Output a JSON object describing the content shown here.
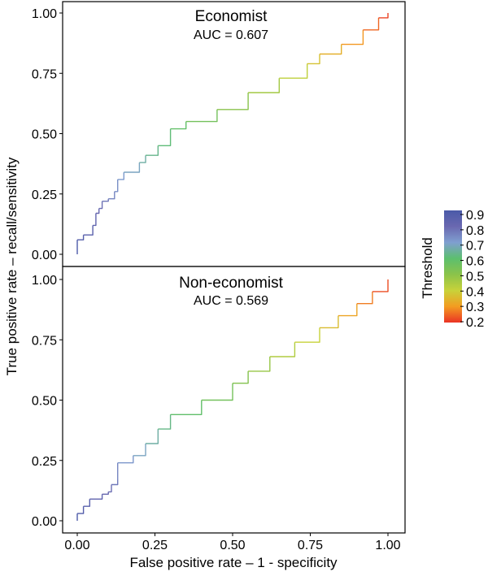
{
  "chart_data": {
    "type": "line",
    "xlabel": "False positive rate – 1 - specificity",
    "ylabel": "True positive rate – recall/sensitivity",
    "xlim": [
      0,
      1
    ],
    "ylim": [
      0,
      1
    ],
    "x_ticks": [
      "0.00",
      "0.25",
      "0.50",
      "0.75",
      "1.00"
    ],
    "y_ticks": [
      "0.00",
      "0.25",
      "0.50",
      "0.75",
      "1.00"
    ],
    "grid": false,
    "legend": {
      "title": "Threshold",
      "placement": "right",
      "range": [
        0.2,
        0.9
      ],
      "ticks": [
        "0.9",
        "0.8",
        "0.7",
        "0.6",
        "0.5",
        "0.4",
        "0.3",
        "0.2"
      ],
      "colors": [
        "#4a5aa8",
        "#6a68b0",
        "#7f9fd0",
        "#5cbf6e",
        "#8bc34a",
        "#c8d23a",
        "#f39c21",
        "#ea3324"
      ]
    },
    "panels": [
      {
        "title": "Economist",
        "subtitle": "AUC = 0.607",
        "points": [
          [
            0.0,
            0.0,
            0.9
          ],
          [
            0.0,
            0.06,
            0.88
          ],
          [
            0.02,
            0.08,
            0.86
          ],
          [
            0.05,
            0.12,
            0.84
          ],
          [
            0.06,
            0.17,
            0.82
          ],
          [
            0.07,
            0.19,
            0.8
          ],
          [
            0.08,
            0.22,
            0.78
          ],
          [
            0.1,
            0.23,
            0.76
          ],
          [
            0.12,
            0.26,
            0.74
          ],
          [
            0.13,
            0.31,
            0.72
          ],
          [
            0.15,
            0.34,
            0.7
          ],
          [
            0.2,
            0.38,
            0.67
          ],
          [
            0.22,
            0.41,
            0.64
          ],
          [
            0.26,
            0.45,
            0.62
          ],
          [
            0.3,
            0.52,
            0.6
          ],
          [
            0.35,
            0.55,
            0.57
          ],
          [
            0.45,
            0.6,
            0.53
          ],
          [
            0.55,
            0.67,
            0.48
          ],
          [
            0.65,
            0.73,
            0.44
          ],
          [
            0.74,
            0.79,
            0.39
          ],
          [
            0.78,
            0.83,
            0.35
          ],
          [
            0.85,
            0.87,
            0.32
          ],
          [
            0.92,
            0.93,
            0.27
          ],
          [
            0.97,
            0.98,
            0.23
          ],
          [
            1.0,
            1.0,
            0.2
          ]
        ]
      },
      {
        "title": "Non-economist",
        "subtitle": "AUC = 0.569",
        "points": [
          [
            0.0,
            0.0,
            0.9
          ],
          [
            0.0,
            0.03,
            0.88
          ],
          [
            0.02,
            0.06,
            0.86
          ],
          [
            0.04,
            0.09,
            0.84
          ],
          [
            0.08,
            0.11,
            0.82
          ],
          [
            0.1,
            0.12,
            0.8
          ],
          [
            0.11,
            0.15,
            0.78
          ],
          [
            0.13,
            0.17,
            0.76
          ],
          [
            0.13,
            0.24,
            0.73
          ],
          [
            0.18,
            0.27,
            0.7
          ],
          [
            0.22,
            0.32,
            0.67
          ],
          [
            0.26,
            0.38,
            0.64
          ],
          [
            0.3,
            0.44,
            0.61
          ],
          [
            0.4,
            0.5,
            0.57
          ],
          [
            0.5,
            0.57,
            0.53
          ],
          [
            0.55,
            0.62,
            0.5
          ],
          [
            0.62,
            0.68,
            0.46
          ],
          [
            0.7,
            0.74,
            0.42
          ],
          [
            0.78,
            0.8,
            0.38
          ],
          [
            0.84,
            0.85,
            0.34
          ],
          [
            0.9,
            0.9,
            0.29
          ],
          [
            0.95,
            0.95,
            0.25
          ],
          [
            1.0,
            1.0,
            0.2
          ]
        ]
      }
    ]
  }
}
